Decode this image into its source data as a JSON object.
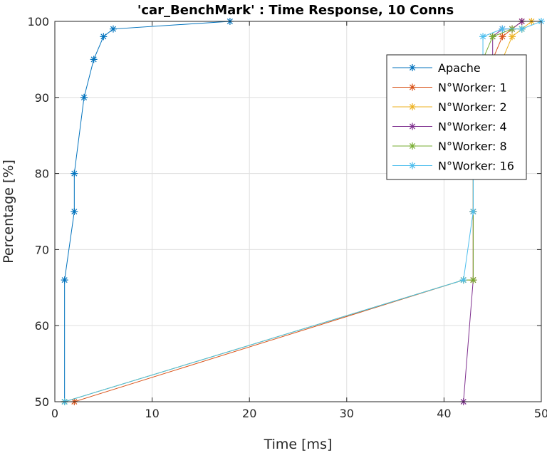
{
  "chart_data": {
    "type": "line",
    "title": "'car_BenchMark' : Time Response, 10 Conns",
    "xlabel": "Time [ms]",
    "ylabel": "Percentage [%]",
    "xlim": [
      0,
      50
    ],
    "ylim": [
      50,
      100
    ],
    "xticks": [
      0,
      10,
      20,
      30,
      40,
      50
    ],
    "yticks": [
      50,
      60,
      70,
      80,
      90,
      100
    ],
    "grid": true,
    "legend_position": "top-right",
    "marker": "asterisk",
    "series": [
      {
        "name": "Apache",
        "color": "#0072BD",
        "x": [
          1,
          1,
          2,
          2,
          3,
          4,
          5,
          6,
          18
        ],
        "y": [
          50,
          66,
          75,
          80,
          90,
          95,
          98,
          99,
          100
        ]
      },
      {
        "name": "N°Worker: 1",
        "color": "#D95319",
        "x": [
          2,
          42,
          43,
          43,
          43,
          44,
          45,
          46,
          47,
          48
        ],
        "y": [
          50,
          66,
          66,
          75,
          80,
          90,
          95,
          98,
          99,
          100
        ]
      },
      {
        "name": "N°Worker: 2",
        "color": "#EDB120",
        "x": [
          1,
          42,
          43,
          43,
          43,
          44,
          46,
          47,
          48,
          49
        ],
        "y": [
          50,
          66,
          66,
          75,
          80,
          90,
          95,
          98,
          99,
          100
        ]
      },
      {
        "name": "N°Worker: 4",
        "color": "#7E2F8E",
        "x": [
          42,
          43,
          43,
          43,
          44,
          45,
          45,
          46,
          47,
          48
        ],
        "y": [
          50,
          66,
          75,
          80,
          90,
          95,
          98,
          99,
          99,
          100
        ]
      },
      {
        "name": "N°Worker: 8",
        "color": "#77AC30",
        "x": [
          1,
          42,
          43,
          43,
          43,
          43,
          44,
          45,
          47,
          48
        ],
        "y": [
          50,
          66,
          66,
          75,
          80,
          90,
          95,
          98,
          99,
          99
        ]
      },
      {
        "name": "N°Worker: 16",
        "color": "#4DBEEE",
        "x": [
          1,
          42,
          43,
          43,
          43,
          44,
          44,
          46,
          48,
          50
        ],
        "y": [
          50,
          66,
          75,
          80,
          90,
          95,
          98,
          99,
          99,
          100
        ]
      }
    ]
  }
}
